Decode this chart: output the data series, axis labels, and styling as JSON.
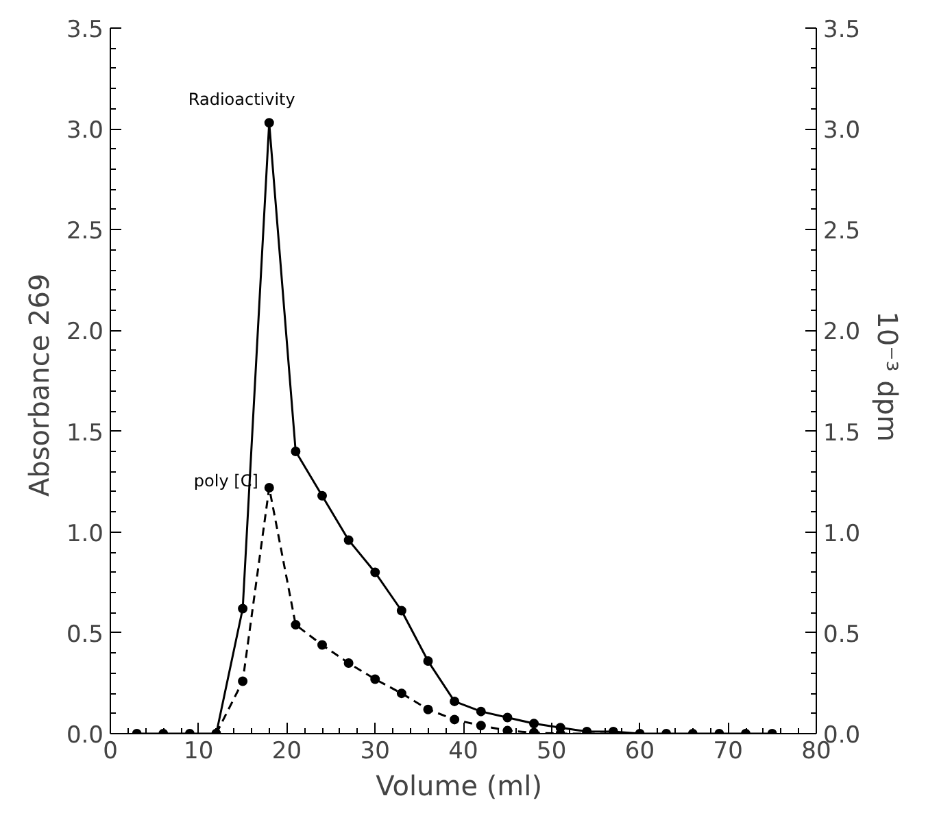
{
  "chart_data": {
    "type": "line",
    "xlabel": "Volume  (ml)",
    "ylabel": "Absorbance  269",
    "y2label": "10⁻³  dpm",
    "xlim": [
      0,
      80
    ],
    "xticks": [
      0,
      10,
      20,
      30,
      40,
      50,
      60,
      70,
      80
    ],
    "ylim": [
      0,
      3.5
    ],
    "yticks": [
      {
        "value": 0,
        "label": "0.0"
      },
      0.5,
      {
        "value": 1,
        "label": "1.0"
      },
      1.5,
      {
        "value": 2,
        "label": "2.0"
      },
      2.5,
      {
        "value": 3,
        "label": "3.0"
      },
      3.5
    ],
    "y2lim": [
      0,
      3.5
    ],
    "y2ticks": [
      {
        "value": 0,
        "label": "0.0"
      },
      0.5,
      {
        "value": 1,
        "label": "1.0"
      },
      1.5,
      {
        "value": 2,
        "label": "2.0"
      },
      2.5,
      {
        "value": 3,
        "label": "3.0"
      },
      3.5
    ],
    "grid": false,
    "marker": "circle",
    "series": [
      {
        "name": "Radioactivity",
        "color": "#000000",
        "axis": "y2",
        "line_style": "solid",
        "x": [
          3,
          6,
          9,
          12,
          15,
          18,
          21,
          24,
          27,
          30,
          33,
          36,
          39,
          42,
          45,
          48,
          51,
          54,
          57,
          60,
          63,
          66,
          69,
          72,
          75
        ],
        "values": [
          0,
          0,
          0,
          0,
          0.62,
          3.03,
          1.4,
          1.18,
          0.96,
          0.8,
          0.61,
          0.36,
          0.16,
          0.11,
          0.08,
          0.05,
          0.03,
          0.01,
          0.01,
          0,
          0,
          0,
          0,
          0,
          0
        ]
      },
      {
        "name": "poly [C]",
        "color": "#000000",
        "axis": "y",
        "line_style": "dashed",
        "x": [
          12,
          15,
          18,
          21,
          24,
          27,
          30,
          33,
          36,
          39,
          42,
          45,
          48,
          51,
          54,
          57
        ],
        "values": [
          0,
          0.26,
          1.22,
          0.54,
          0.44,
          0.35,
          0.27,
          0.2,
          0.12,
          0.07,
          0.04,
          0.015,
          0.005,
          0,
          0,
          0
        ]
      }
    ]
  }
}
